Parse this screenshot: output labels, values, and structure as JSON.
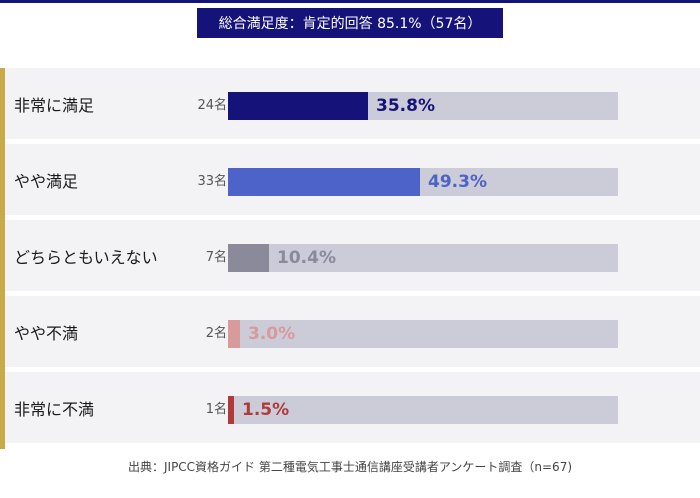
{
  "summary": "総合満足度：肯定的回答 85.1%（57名）",
  "source": "出典：JIPCC資格ガイド 第二種電気工事士通信講座受講者アンケート調査（n=67)",
  "colors": {
    "header": "#15127a",
    "accent": "#c9aa4a",
    "track": "#cccbd8"
  },
  "chart_data": {
    "type": "bar",
    "orientation": "horizontal",
    "title": "",
    "xlabel": "",
    "ylabel": "",
    "xlim": [
      0,
      100
    ],
    "categories": [
      "非常に満足",
      "やや満足",
      "どちらともいえない",
      "やや不満",
      "非常に不満"
    ],
    "counts": [
      "24名",
      "33名",
      "7名",
      "2名",
      "1名"
    ],
    "values": [
      35.8,
      49.3,
      10.4,
      3.0,
      1.5
    ],
    "value_labels": [
      "35.8%",
      "49.3%",
      "10.4%",
      "3.0%",
      "1.5%"
    ],
    "bar_colors": [
      "#15127a",
      "#4e63c9",
      "#8a8a9a",
      "#d89a9a",
      "#b03a3a"
    ]
  }
}
